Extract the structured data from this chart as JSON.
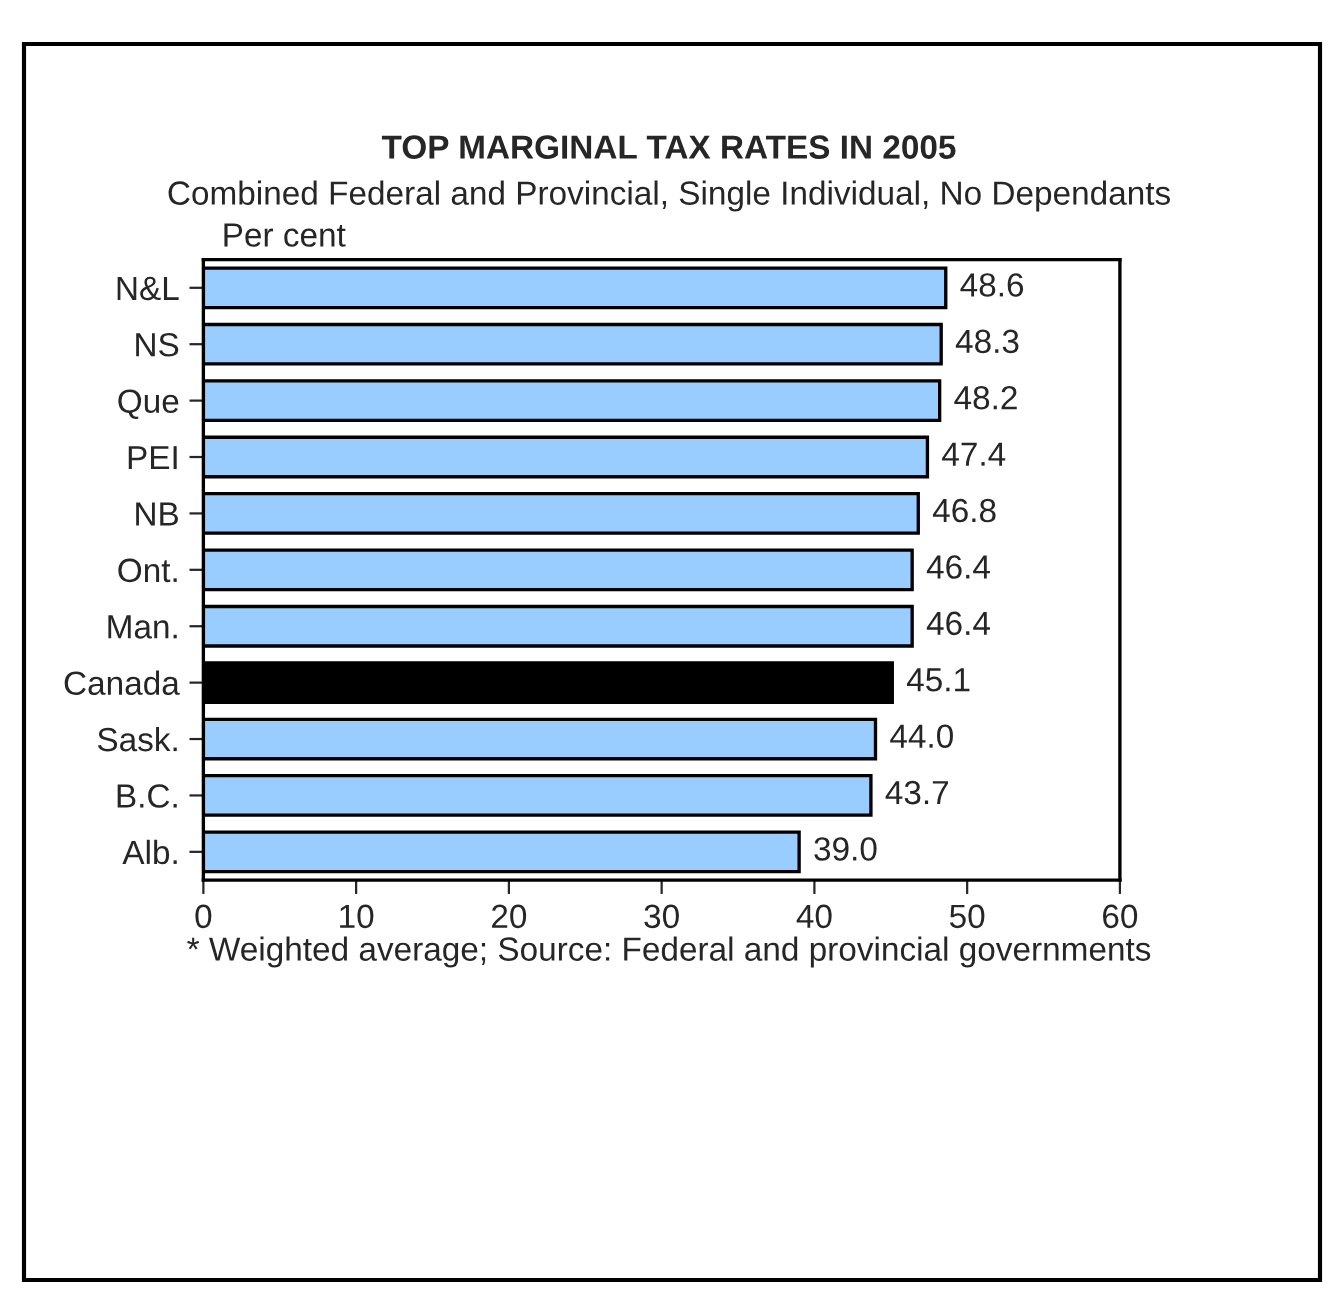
{
  "chart_data": {
    "type": "bar",
    "orientation": "horizontal",
    "title": "TOP MARGINAL TAX RATES IN 2005",
    "subtitle": "Combined Federal and Provincial, Single Individual, No Dependants",
    "xlabel": "Per cent",
    "categories": [
      "N&L",
      "NS",
      "Que",
      "PEI",
      "NB",
      "Ont.",
      "Man.",
      "Canada",
      "Sask.",
      "B.C.",
      "Alb."
    ],
    "values": [
      48.6,
      48.3,
      48.2,
      47.4,
      46.8,
      46.4,
      46.4,
      45.1,
      44.0,
      43.7,
      39.0
    ],
    "value_labels": [
      "48.6",
      "48.3",
      "48.2",
      "47.4",
      "46.8",
      "46.4",
      "46.4",
      "45.1",
      "44.0",
      "43.7",
      "39.0"
    ],
    "colors": [
      "#99ccff",
      "#99ccff",
      "#99ccff",
      "#99ccff",
      "#99ccff",
      "#99ccff",
      "#99ccff",
      "#000000",
      "#99ccff",
      "#99ccff",
      "#99ccff"
    ],
    "xlim": [
      0,
      60
    ],
    "xticks": [
      0,
      10,
      20,
      30,
      40,
      50,
      60
    ],
    "grid": false,
    "legend": false,
    "annotations": [
      "* Weighted average; Source: Federal and provincial governments"
    ]
  }
}
